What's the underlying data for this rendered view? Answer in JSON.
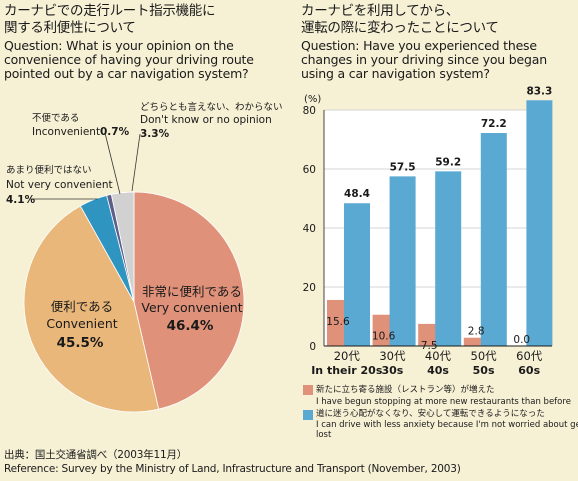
{
  "left": {
    "title_jp_1": "カーナビでの走行ルート指示機能に",
    "title_jp_2": "関する利便性について",
    "question_1": "Question: What is your opinion on the",
    "question_2": "convenience of having your driving route",
    "question_3": "pointed out by a car navigation system?"
  },
  "right": {
    "title_jp_1": "カーナビを利用してから、",
    "title_jp_2": "運転の際に変わったことについて",
    "question_1": "Question: Have you experienced these",
    "question_2": "changes in your driving since you began",
    "question_3": "using a car navigation system?"
  },
  "footer": {
    "source_jp": "出典：国土交通省調べ（2003年11月）",
    "source_en": "Reference: Survey by the Ministry of Land, Infrastructure and Transport (November, 2003)"
  },
  "chart_data": [
    {
      "type": "pie",
      "slices": [
        {
          "label_jp": "非常に便利である",
          "label_en": "Very convenient",
          "value": 46.4,
          "value_label": "46.4%",
          "color": "#e0917a"
        },
        {
          "label_jp": "便利である",
          "label_en": "Convenient",
          "value": 45.5,
          "value_label": "45.5%",
          "color": "#e9b77a"
        },
        {
          "label_jp": "あまり便利ではない",
          "label_en": "Not very convenient",
          "value": 4.1,
          "value_label": "4.1%",
          "color": "#2f94c0"
        },
        {
          "label_jp": "不便である",
          "label_en": "Inconvenient",
          "value": 0.7,
          "value_label": "0.7%",
          "color": "#5b5f8a"
        },
        {
          "label_jp": "どちらとも言えない、わからない",
          "label_en": "Don't know or no opinion",
          "value": 3.3,
          "value_label": "3.3%",
          "color": "#d1d1d1"
        }
      ]
    },
    {
      "type": "bar",
      "ylabel": "(%)",
      "ylim": [
        0,
        80
      ],
      "yticks": [
        0,
        20,
        40,
        60,
        80
      ],
      "categories": [
        {
          "jp": "20代",
          "en": "In their 20s"
        },
        {
          "jp": "30代",
          "en": "30s"
        },
        {
          "jp": "40代",
          "en": "40s"
        },
        {
          "jp": "50代",
          "en": "50s"
        },
        {
          "jp": "60代",
          "en": "60s"
        }
      ],
      "series": [
        {
          "name_jp": "新たに立ち寄る施設（レストラン等）が増えた",
          "name_en": "I have begun stopping at more new restaurants than before",
          "color": "#e0917a",
          "values": [
            15.6,
            10.6,
            7.5,
            2.8,
            0.0
          ],
          "value_labels": [
            "15.6",
            "10.6",
            "7.5",
            "2.8",
            "0.0"
          ]
        },
        {
          "name_jp": "道に迷う心配がなくなり、安心して運転できるようになった",
          "name_en": "I can drive with less anxiety because I'm not worried about getting lost",
          "color": "#5aa9d3",
          "values": [
            48.4,
            57.5,
            59.2,
            72.2,
            83.3
          ],
          "value_labels": [
            "48.4",
            "57.5",
            "59.2",
            "72.2",
            "83.3"
          ]
        }
      ]
    }
  ]
}
